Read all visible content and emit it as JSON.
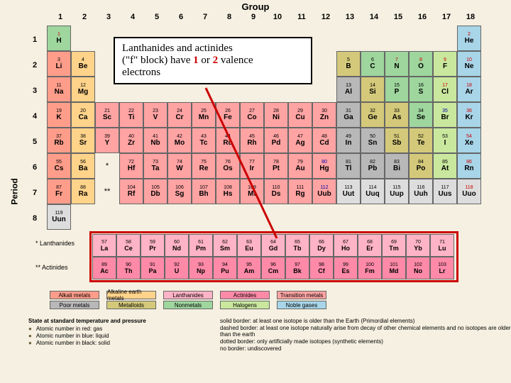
{
  "labels": {
    "group": "Group",
    "period": "Period"
  },
  "callout": {
    "l1": "Lanthanides and actinides",
    "l2a": "(\"f\" block) have ",
    "n1": "1",
    "mid": " or ",
    "n2": "2",
    "l2b": " valence",
    "l3": "electrons"
  },
  "groups": [
    "1",
    "2",
    "3",
    "4",
    "5",
    "6",
    "7",
    "8",
    "9",
    "10",
    "11",
    "12",
    "13",
    "14",
    "15",
    "16",
    "17",
    "18"
  ],
  "periods": [
    "1",
    "2",
    "3",
    "4",
    "5",
    "6",
    "7",
    "8"
  ],
  "f_labels": {
    "lan": "* Lanthanides",
    "act": "** Actinides"
  },
  "rows": [
    [
      {
        "n": "1",
        "s": "H",
        "c": "nonmetal",
        "st": "gas"
      },
      null,
      null,
      null,
      null,
      null,
      null,
      null,
      null,
      null,
      null,
      null,
      null,
      null,
      null,
      null,
      null,
      {
        "n": "2",
        "s": "He",
        "c": "noble",
        "st": "gas"
      }
    ],
    [
      {
        "n": "3",
        "s": "Li",
        "c": "alkali"
      },
      {
        "n": "4",
        "s": "Be",
        "c": "alkearth"
      },
      null,
      null,
      null,
      null,
      null,
      null,
      null,
      null,
      null,
      null,
      {
        "n": "5",
        "s": "B",
        "c": "metalloid"
      },
      {
        "n": "6",
        "s": "C",
        "c": "nonmetal"
      },
      {
        "n": "7",
        "s": "N",
        "c": "nonmetal",
        "st": "gas"
      },
      {
        "n": "8",
        "s": "O",
        "c": "nonmetal",
        "st": "gas"
      },
      {
        "n": "9",
        "s": "F",
        "c": "halogen",
        "st": "gas"
      },
      {
        "n": "10",
        "s": "Ne",
        "c": "noble",
        "st": "gas"
      }
    ],
    [
      {
        "n": "11",
        "s": "Na",
        "c": "alkali"
      },
      {
        "n": "12",
        "s": "Mg",
        "c": "alkearth"
      },
      null,
      null,
      null,
      null,
      null,
      null,
      null,
      null,
      null,
      null,
      {
        "n": "13",
        "s": "Al",
        "c": "poor"
      },
      {
        "n": "14",
        "s": "Si",
        "c": "metalloid"
      },
      {
        "n": "15",
        "s": "P",
        "c": "nonmetal"
      },
      {
        "n": "16",
        "s": "S",
        "c": "nonmetal"
      },
      {
        "n": "17",
        "s": "Cl",
        "c": "halogen",
        "st": "gas"
      },
      {
        "n": "18",
        "s": "Ar",
        "c": "noble",
        "st": "gas"
      }
    ],
    [
      {
        "n": "19",
        "s": "K",
        "c": "alkali"
      },
      {
        "n": "20",
        "s": "Ca",
        "c": "alkearth"
      },
      {
        "n": "21",
        "s": "Sc",
        "c": "trans"
      },
      {
        "n": "22",
        "s": "Ti",
        "c": "trans"
      },
      {
        "n": "23",
        "s": "V",
        "c": "trans"
      },
      {
        "n": "24",
        "s": "Cr",
        "c": "trans"
      },
      {
        "n": "25",
        "s": "Mn",
        "c": "trans"
      },
      {
        "n": "26",
        "s": "Fe",
        "c": "trans"
      },
      {
        "n": "27",
        "s": "Co",
        "c": "trans"
      },
      {
        "n": "28",
        "s": "Ni",
        "c": "trans"
      },
      {
        "n": "29",
        "s": "Cu",
        "c": "trans"
      },
      {
        "n": "30",
        "s": "Zn",
        "c": "trans"
      },
      {
        "n": "31",
        "s": "Ga",
        "c": "poor"
      },
      {
        "n": "32",
        "s": "Ge",
        "c": "metalloid"
      },
      {
        "n": "33",
        "s": "As",
        "c": "metalloid"
      },
      {
        "n": "34",
        "s": "Se",
        "c": "nonmetal"
      },
      {
        "n": "35",
        "s": "Br",
        "c": "halogen",
        "st": "liq"
      },
      {
        "n": "36",
        "s": "Kr",
        "c": "noble",
        "st": "gas"
      }
    ],
    [
      {
        "n": "37",
        "s": "Rb",
        "c": "alkali"
      },
      {
        "n": "38",
        "s": "Sr",
        "c": "alkearth"
      },
      {
        "n": "39",
        "s": "Y",
        "c": "trans"
      },
      {
        "n": "40",
        "s": "Zr",
        "c": "trans"
      },
      {
        "n": "41",
        "s": "Nb",
        "c": "trans"
      },
      {
        "n": "42",
        "s": "Mo",
        "c": "trans"
      },
      {
        "n": "43",
        "s": "Tc",
        "c": "trans"
      },
      {
        "n": "44",
        "s": "Ru",
        "c": "trans"
      },
      {
        "n": "45",
        "s": "Rh",
        "c": "trans"
      },
      {
        "n": "46",
        "s": "Pd",
        "c": "trans"
      },
      {
        "n": "47",
        "s": "Ag",
        "c": "trans"
      },
      {
        "n": "48",
        "s": "Cd",
        "c": "trans"
      },
      {
        "n": "49",
        "s": "In",
        "c": "poor"
      },
      {
        "n": "50",
        "s": "Sn",
        "c": "poor"
      },
      {
        "n": "51",
        "s": "Sb",
        "c": "metalloid"
      },
      {
        "n": "52",
        "s": "Te",
        "c": "metalloid"
      },
      {
        "n": "53",
        "s": "I",
        "c": "halogen"
      },
      {
        "n": "54",
        "s": "Xe",
        "c": "noble",
        "st": "gas"
      }
    ],
    [
      {
        "n": "55",
        "s": "Cs",
        "c": "alkali"
      },
      {
        "n": "56",
        "s": "Ba",
        "c": "alkearth"
      },
      {
        "star": "*"
      },
      {
        "n": "72",
        "s": "Hf",
        "c": "trans"
      },
      {
        "n": "73",
        "s": "Ta",
        "c": "trans"
      },
      {
        "n": "74",
        "s": "W",
        "c": "trans"
      },
      {
        "n": "75",
        "s": "Re",
        "c": "trans"
      },
      {
        "n": "76",
        "s": "Os",
        "c": "trans"
      },
      {
        "n": "77",
        "s": "Ir",
        "c": "trans"
      },
      {
        "n": "78",
        "s": "Pt",
        "c": "trans"
      },
      {
        "n": "79",
        "s": "Au",
        "c": "trans"
      },
      {
        "n": "80",
        "s": "Hg",
        "c": "trans",
        "st": "liq"
      },
      {
        "n": "81",
        "s": "Tl",
        "c": "poor"
      },
      {
        "n": "82",
        "s": "Pb",
        "c": "poor"
      },
      {
        "n": "83",
        "s": "Bi",
        "c": "poor"
      },
      {
        "n": "84",
        "s": "Po",
        "c": "metalloid"
      },
      {
        "n": "85",
        "s": "At",
        "c": "halogen"
      },
      {
        "n": "86",
        "s": "Rn",
        "c": "noble",
        "st": "gas"
      }
    ],
    [
      {
        "n": "87",
        "s": "Fr",
        "c": "alkali"
      },
      {
        "n": "88",
        "s": "Ra",
        "c": "alkearth"
      },
      {
        "star": "**"
      },
      {
        "n": "104",
        "s": "Rf",
        "c": "trans"
      },
      {
        "n": "105",
        "s": "Db",
        "c": "trans"
      },
      {
        "n": "106",
        "s": "Sg",
        "c": "trans"
      },
      {
        "n": "107",
        "s": "Bh",
        "c": "trans"
      },
      {
        "n": "108",
        "s": "Hs",
        "c": "trans"
      },
      {
        "n": "109",
        "s": "Mt",
        "c": "trans"
      },
      {
        "n": "110",
        "s": "Ds",
        "c": "trans"
      },
      {
        "n": "111",
        "s": "Rg",
        "c": "trans"
      },
      {
        "n": "112",
        "s": "Uub",
        "c": "trans",
        "st": "liq"
      },
      {
        "n": "113",
        "s": "Uut",
        "c": "unknown"
      },
      {
        "n": "114",
        "s": "Uuq",
        "c": "unknown"
      },
      {
        "n": "115",
        "s": "Uup",
        "c": "unknown"
      },
      {
        "n": "116",
        "s": "Uuh",
        "c": "unknown"
      },
      {
        "n": "117",
        "s": "Uus",
        "c": "unknown"
      },
      {
        "n": "118",
        "s": "Uuo",
        "c": "unknown",
        "st": "gas"
      }
    ],
    [
      {
        "n": "119",
        "s": "Uun",
        "c": "unknown"
      },
      null,
      null,
      null,
      null,
      null,
      null,
      null,
      null,
      null,
      null,
      null,
      null,
      null,
      null,
      null,
      null,
      null
    ]
  ],
  "frows": [
    [
      {
        "n": "57",
        "s": "La"
      },
      {
        "n": "58",
        "s": "Ce"
      },
      {
        "n": "59",
        "s": "Pr"
      },
      {
        "n": "60",
        "s": "Nd"
      },
      {
        "n": "61",
        "s": "Pm"
      },
      {
        "n": "62",
        "s": "Sm"
      },
      {
        "n": "63",
        "s": "Eu"
      },
      {
        "n": "64",
        "s": "Gd"
      },
      {
        "n": "65",
        "s": "Tb"
      },
      {
        "n": "66",
        "s": "Dy"
      },
      {
        "n": "67",
        "s": "Ho"
      },
      {
        "n": "68",
        "s": "Er"
      },
      {
        "n": "69",
        "s": "Tm"
      },
      {
        "n": "70",
        "s": "Yb"
      },
      {
        "n": "71",
        "s": "Lu"
      }
    ],
    [
      {
        "n": "89",
        "s": "Ac"
      },
      {
        "n": "90",
        "s": "Th"
      },
      {
        "n": "91",
        "s": "Pa"
      },
      {
        "n": "92",
        "s": "U"
      },
      {
        "n": "93",
        "s": "Np"
      },
      {
        "n": "94",
        "s": "Pu"
      },
      {
        "n": "95",
        "s": "Am"
      },
      {
        "n": "96",
        "s": "Cm"
      },
      {
        "n": "97",
        "s": "Bk"
      },
      {
        "n": "98",
        "s": "Cf"
      },
      {
        "n": "99",
        "s": "Es"
      },
      {
        "n": "100",
        "s": "Fm"
      },
      {
        "n": "101",
        "s": "Md"
      },
      {
        "n": "102",
        "s": "No"
      },
      {
        "n": "103",
        "s": "Lr"
      }
    ]
  ],
  "legend_cats": [
    [
      {
        "t": "Alkali metals",
        "c": "alkali"
      },
      {
        "t": "Alkaline earth metals",
        "c": "alkearth"
      },
      {
        "t": "Lanthanides",
        "c": "lanth"
      },
      {
        "t": "Actinides",
        "c": "acti"
      },
      {
        "t": "Transition metals",
        "c": "trans"
      }
    ],
    [
      {
        "t": "Poor metals",
        "c": "poor"
      },
      {
        "t": "Metalloids",
        "c": "metalloid"
      },
      {
        "t": "Nonmetals",
        "c": "nonmetal"
      },
      {
        "t": "Halogens",
        "c": "halogen"
      },
      {
        "t": "Noble gases",
        "c": "noble"
      }
    ]
  ],
  "state_legend": {
    "title": "State at standard temperature and pressure",
    "items": [
      "Atomic number in red: gas",
      "Atomic number in blue: liquid",
      "Atomic number in black: solid"
    ]
  },
  "border_legend": [
    "solid border: at least one isotope is older than the Earth (Primordial elements)",
    "dashed border: at least one isotope naturally arise from decay of other chemical elements and no isotopes are older than the earth",
    "dotted border: only artificially made isotopes (synthetic elements)",
    "no border: undiscovered"
  ]
}
